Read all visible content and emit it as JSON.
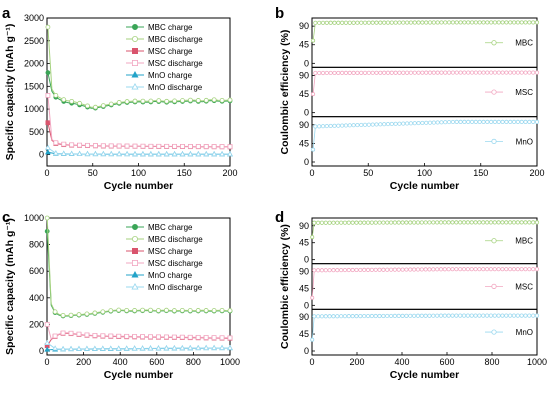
{
  "colors": {
    "mbc_charge": "#3aa557",
    "mbc_discharge": "#a5d27e",
    "msc_charge": "#d9546d",
    "msc_discharge": "#f2a7c1",
    "mno_charge": "#23a3c8",
    "mno_discharge": "#9ad8ef",
    "axis": "#000000"
  },
  "chart_data": [
    {
      "panel": "a",
      "type": "line",
      "xlabel": "Cycle number",
      "ylabel": "Specific capacity (mAh g⁻¹)",
      "xlim": [
        0,
        200
      ],
      "ylim": [
        -250,
        3000
      ],
      "xticks": [
        0,
        50,
        100,
        150,
        200
      ],
      "yticks": [
        0,
        500,
        1000,
        1500,
        2000,
        2500,
        3000
      ],
      "legend_position": "top-right",
      "series": [
        {
          "name": "MBC charge",
          "marker": "circle",
          "color_key": "mbc_charge",
          "x": [
            1,
            5,
            10,
            20,
            30,
            40,
            50,
            60,
            70,
            80,
            90,
            100,
            110,
            120,
            130,
            140,
            150,
            160,
            170,
            180,
            190,
            200
          ],
          "y": [
            1800,
            1400,
            1250,
            1150,
            1120,
            1070,
            1010,
            1050,
            1090,
            1130,
            1150,
            1160,
            1150,
            1170,
            1150,
            1160,
            1170,
            1180,
            1160,
            1190,
            1170,
            1180
          ]
        },
        {
          "name": "MBC discharge",
          "marker": "circle",
          "color_key": "mbc_discharge",
          "x": [
            1,
            5,
            10,
            20,
            30,
            40,
            50,
            60,
            70,
            80,
            90,
            100,
            110,
            120,
            130,
            140,
            150,
            160,
            170,
            180,
            190,
            200
          ],
          "y": [
            2800,
            1450,
            1290,
            1190,
            1160,
            1100,
            1030,
            1070,
            1110,
            1150,
            1170,
            1180,
            1170,
            1190,
            1170,
            1180,
            1190,
            1200,
            1180,
            1210,
            1190,
            1200
          ]
        },
        {
          "name": "MSC charge",
          "marker": "square",
          "color_key": "msc_charge",
          "x": [
            1,
            5,
            10,
            20,
            30,
            40,
            50,
            60,
            70,
            80,
            90,
            100,
            110,
            120,
            130,
            140,
            150,
            160,
            170,
            180,
            190,
            200
          ],
          "y": [
            700,
            320,
            240,
            215,
            205,
            200,
            195,
            190,
            188,
            186,
            184,
            182,
            180,
            179,
            178,
            177,
            176,
            175,
            174,
            173,
            172,
            171
          ]
        },
        {
          "name": "MSC discharge",
          "marker": "square",
          "color_key": "msc_discharge",
          "x": [
            1,
            5,
            10,
            20,
            30,
            40,
            50,
            60,
            70,
            80,
            90,
            100,
            110,
            120,
            130,
            140,
            150,
            160,
            170,
            180,
            190,
            200
          ],
          "y": [
            1300,
            340,
            255,
            225,
            212,
            206,
            200,
            196,
            193,
            190,
            188,
            186,
            184,
            183,
            182,
            181,
            180,
            179,
            178,
            177,
            176,
            175
          ]
        },
        {
          "name": "MnO charge",
          "marker": "triangle",
          "color_key": "mno_charge",
          "x": [
            1,
            10,
            20,
            40,
            60,
            80,
            100,
            120,
            140,
            160,
            180,
            200
          ],
          "y": [
            50,
            20,
            15,
            12,
            10,
            10,
            9,
            9,
            8,
            8,
            8,
            8
          ]
        },
        {
          "name": "MnO discharge",
          "marker": "triangle",
          "color_key": "mno_discharge",
          "x": [
            1,
            10,
            20,
            40,
            60,
            80,
            100,
            120,
            140,
            160,
            180,
            200
          ],
          "y": [
            150,
            25,
            18,
            14,
            12,
            11,
            10,
            10,
            9,
            9,
            9,
            9
          ]
        }
      ]
    },
    {
      "panel": "b",
      "type": "scatter",
      "xlabel": "Cycle number",
      "ylabel": "Coulombic efficiency (%)",
      "xlim": [
        0,
        200
      ],
      "xticks": [
        0,
        50,
        100,
        150,
        200
      ],
      "stack_ylim": [
        0,
        100
      ],
      "stack_yticks": [
        0,
        45,
        90
      ],
      "series": [
        {
          "name": "MBC",
          "color_key": "mbc_discharge",
          "first": [
            1,
            55
          ],
          "x": [
            3,
            200
          ],
          "y": [
            98,
            99
          ]
        },
        {
          "name": "MSC",
          "color_key": "msc_discharge",
          "first": [
            1,
            45
          ],
          "x": [
            3,
            200
          ],
          "y": [
            96,
            97
          ]
        },
        {
          "name": "MnO",
          "color_key": "mno_discharge",
          "first": [
            1,
            30
          ],
          "x": [
            3,
            200
          ],
          "y": [
            86,
            97
          ]
        }
      ]
    },
    {
      "panel": "c",
      "type": "line",
      "xlabel": "Cycle number",
      "ylabel": "Specific capacity (mAh g⁻¹)",
      "xlim": [
        0,
        1000
      ],
      "ylim": [
        -30,
        1000
      ],
      "xticks": [
        0,
        200,
        400,
        600,
        800,
        1000
      ],
      "yticks": [
        0,
        200,
        400,
        600,
        800,
        1000
      ],
      "legend_position": "top-right",
      "series": [
        {
          "name": "MBC charge",
          "marker": "circle",
          "color_key": "mbc_charge",
          "x": [
            1,
            10,
            25,
            50,
            75,
            100,
            150,
            200,
            250,
            300,
            350,
            400,
            450,
            500,
            550,
            600,
            650,
            700,
            750,
            800,
            850,
            900,
            950,
            1000
          ],
          "y": [
            900,
            480,
            320,
            280,
            265,
            262,
            268,
            272,
            280,
            290,
            300,
            305,
            300,
            302,
            305,
            300,
            303,
            300,
            302,
            300,
            302,
            300,
            302,
            300
          ]
        },
        {
          "name": "MBC discharge",
          "marker": "circle",
          "color_key": "mbc_discharge",
          "x": [
            1,
            10,
            25,
            50,
            75,
            100,
            150,
            200,
            250,
            300,
            350,
            400,
            450,
            500,
            550,
            600,
            650,
            700,
            750,
            800,
            850,
            900,
            950,
            1000
          ],
          "y": [
            1000,
            500,
            330,
            285,
            270,
            266,
            272,
            276,
            284,
            294,
            304,
            309,
            304,
            306,
            309,
            304,
            307,
            304,
            306,
            304,
            306,
            304,
            306,
            304
          ]
        },
        {
          "name": "MSC charge",
          "marker": "square",
          "color_key": "msc_charge",
          "x": [
            1,
            10,
            25,
            50,
            75,
            100,
            150,
            200,
            250,
            300,
            350,
            400,
            450,
            500,
            550,
            600,
            650,
            700,
            750,
            800,
            850,
            900,
            950,
            1000
          ],
          "y": [
            40,
            60,
            90,
            115,
            130,
            135,
            128,
            120,
            115,
            112,
            110,
            108,
            107,
            106,
            105,
            104,
            103,
            102,
            101,
            100,
            99,
            98,
            97,
            96
          ]
        },
        {
          "name": "MSC discharge",
          "marker": "square",
          "color_key": "msc_discharge",
          "x": [
            1,
            10,
            25,
            50,
            75,
            100,
            150,
            200,
            250,
            300,
            350,
            400,
            450,
            500,
            550,
            600,
            650,
            700,
            750,
            800,
            850,
            900,
            950,
            1000
          ],
          "y": [
            200,
            70,
            95,
            118,
            133,
            138,
            131,
            123,
            118,
            115,
            113,
            111,
            110,
            109,
            108,
            107,
            106,
            105,
            104,
            103,
            102,
            101,
            100,
            99
          ]
        },
        {
          "name": "MnO charge",
          "marker": "triangle",
          "color_key": "mno_charge",
          "x": [
            1,
            50,
            100,
            200,
            300,
            400,
            500,
            600,
            700,
            800,
            900,
            1000
          ],
          "y": [
            10,
            12,
            14,
            15,
            16,
            17,
            18,
            19,
            20,
            21,
            22,
            22
          ]
        },
        {
          "name": "MnO discharge",
          "marker": "triangle",
          "color_key": "mno_discharge",
          "x": [
            1,
            50,
            100,
            200,
            300,
            400,
            500,
            600,
            700,
            800,
            900,
            1000
          ],
          "y": [
            60,
            14,
            15,
            16,
            17,
            18,
            19,
            20,
            21,
            22,
            23,
            23
          ]
        }
      ]
    },
    {
      "panel": "d",
      "type": "scatter",
      "xlabel": "Cycle number",
      "ylabel": "Coulombic efficiency (%)",
      "xlim": [
        0,
        1000
      ],
      "xticks": [
        0,
        200,
        400,
        600,
        800,
        1000
      ],
      "stack_ylim": [
        0,
        100
      ],
      "stack_yticks": [
        0,
        45,
        90
      ],
      "series": [
        {
          "name": "MBC",
          "color_key": "mbc_discharge",
          "first": [
            1,
            60
          ],
          "x": [
            10,
            1000
          ],
          "y": [
            98,
            99
          ]
        },
        {
          "name": "MSC",
          "color_key": "msc_discharge",
          "first": [
            1,
            20
          ],
          "x": [
            10,
            1000
          ],
          "y": [
            93,
            96
          ]
        },
        {
          "name": "MnO",
          "color_key": "mno_discharge",
          "first": [
            1,
            30
          ],
          "x": [
            10,
            1000
          ],
          "y": [
            92,
            94
          ]
        }
      ]
    }
  ]
}
